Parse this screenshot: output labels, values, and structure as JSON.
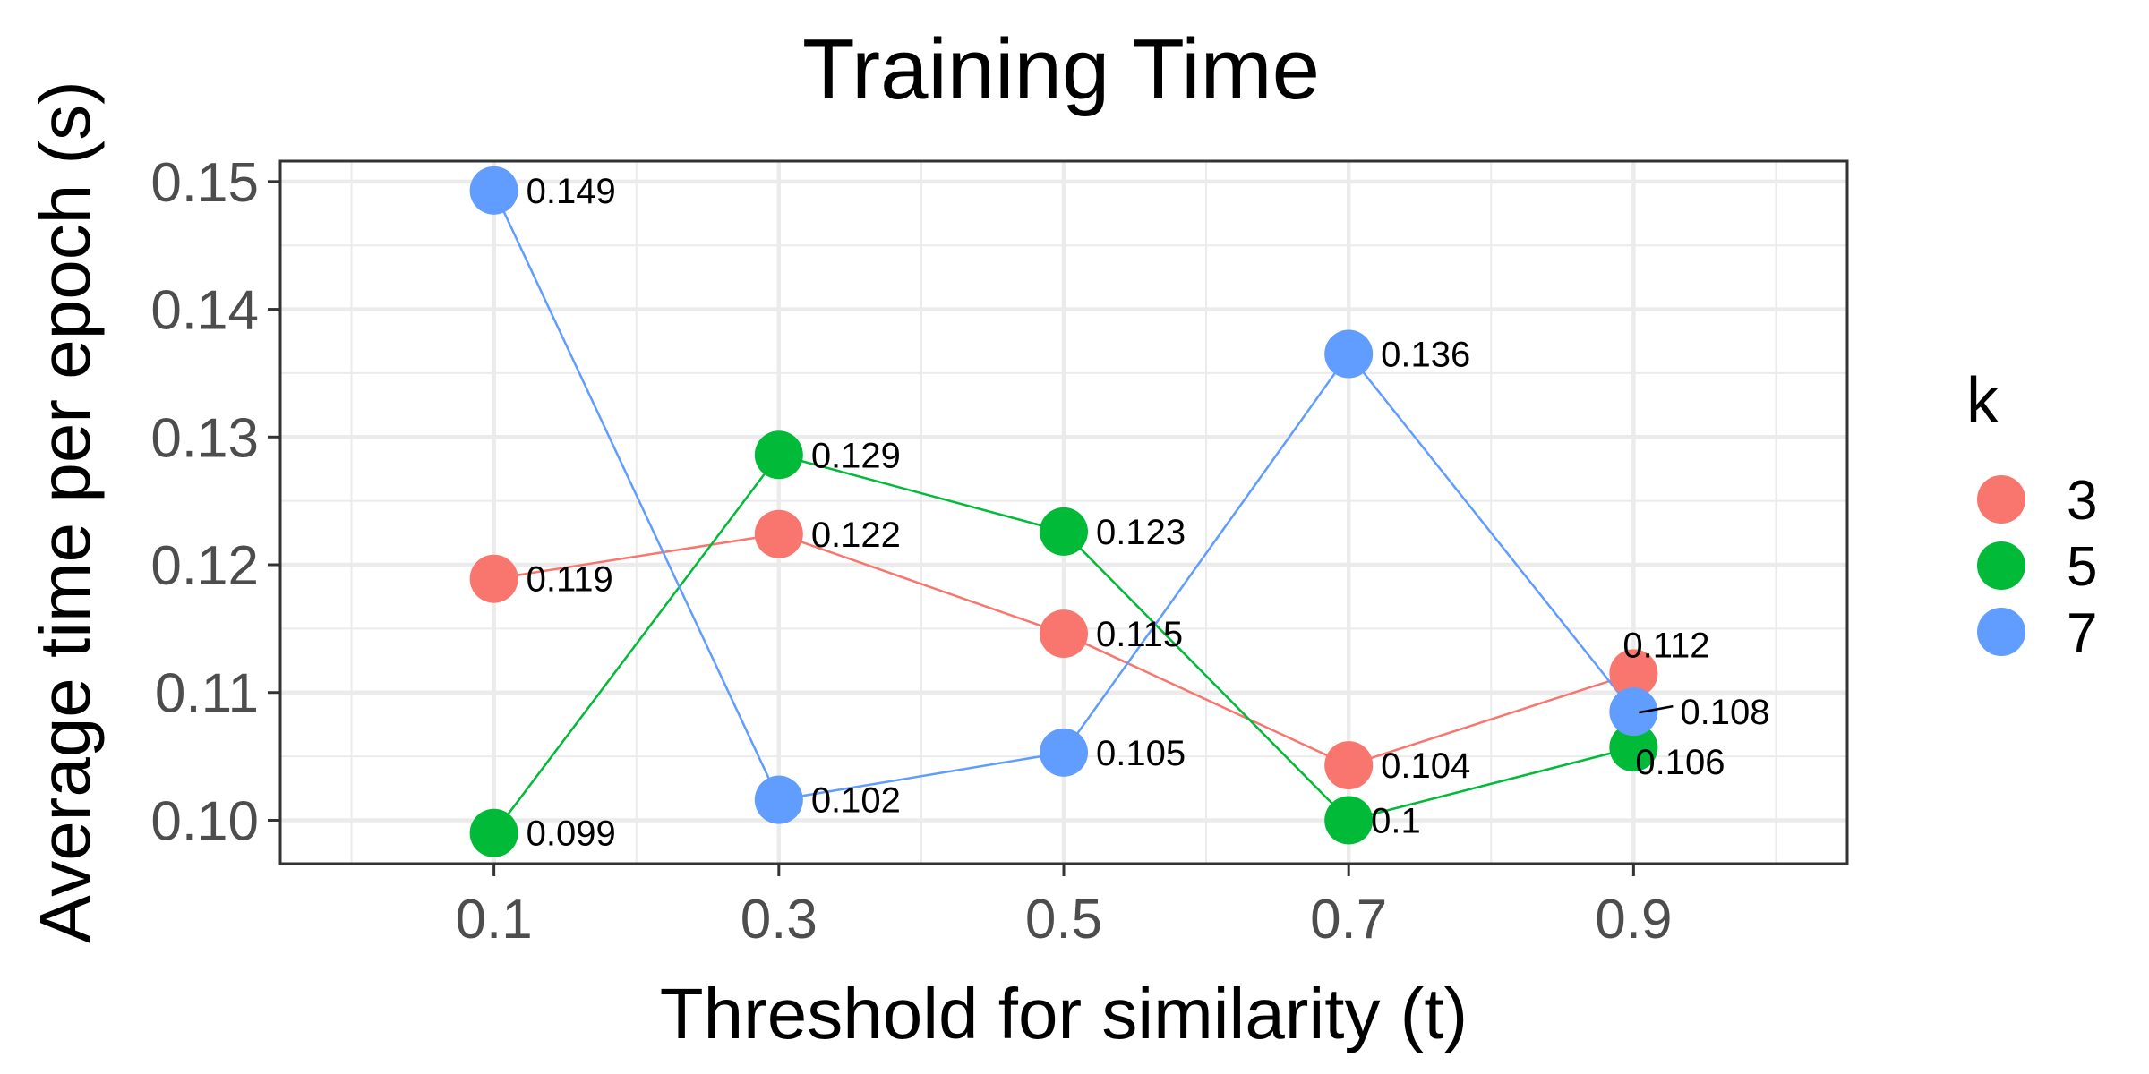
{
  "chart_data": {
    "type": "line",
    "title": "Training Time",
    "xlabel": "Threshold for similarity (t)",
    "ylabel": "Average time per epoch (s)",
    "x": [
      0.1,
      0.3,
      0.5,
      0.7,
      0.9
    ],
    "x_tick_labels": [
      "0.1",
      "0.3",
      "0.5",
      "0.7",
      "0.9"
    ],
    "y_ticks": [
      0.1,
      0.11,
      0.12,
      0.13,
      0.14,
      0.15
    ],
    "y_tick_labels": [
      "0.10",
      "0.11",
      "0.12",
      "0.13",
      "0.14",
      "0.15"
    ],
    "xlim": [
      -0.05,
      1.05
    ],
    "ylim": [
      0.0966,
      0.1516
    ],
    "grid": true,
    "legend_title": "k",
    "legend_position": "right",
    "series": [
      {
        "name": "3",
        "color": "#F8766D",
        "values": [
          0.1189,
          0.1224,
          0.1146,
          0.1043,
          0.1115
        ],
        "labels": [
          "0.119",
          "0.122",
          "0.115",
          "0.104",
          "0.112"
        ]
      },
      {
        "name": "5",
        "color": "#00BA38",
        "values": [
          0.099,
          0.1286,
          0.1226,
          0.1,
          0.1057
        ],
        "labels": [
          "0.099",
          "0.129",
          "0.123",
          "0.1",
          "0.106"
        ]
      },
      {
        "name": "7",
        "color": "#619CFF",
        "values": [
          0.1493,
          0.1016,
          0.1053,
          0.1365,
          0.1085
        ],
        "labels": [
          "0.149",
          "0.102",
          "0.105",
          "0.136",
          "0.108"
        ]
      }
    ]
  }
}
